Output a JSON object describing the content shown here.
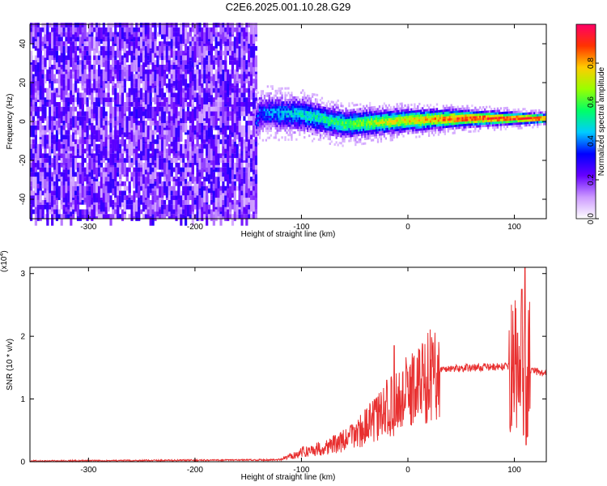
{
  "title": "C2E6.2025.001.10.28.G29",
  "chart_data": [
    {
      "type": "heatmap",
      "xlabel": "Height of straight line (km)",
      "ylabel": "Frequency (Hz)",
      "xlim": [
        -355,
        130
      ],
      "ylim": [
        -50,
        50
      ],
      "xticks": [
        -300,
        -200,
        -100,
        0,
        100
      ],
      "yticks": [
        -40,
        -20,
        0,
        20,
        40
      ],
      "colorbar": {
        "label": "Normalized spectral amplitude",
        "range": [
          0,
          1
        ],
        "ticks": [
          0.0,
          0.2,
          0.4,
          0.6,
          0.8
        ],
        "colors": [
          "#ffffff",
          "#cc99ff",
          "#6600ff",
          "#0000ff",
          "#00ccff",
          "#00ff66",
          "#99ff00",
          "#ffcc00",
          "#ff3300",
          "#ff0066"
        ]
      },
      "noise_region_x": [
        -355,
        -143
      ],
      "signal_center_hz": [
        {
          "x": -140,
          "y": 4
        },
        {
          "x": -100,
          "y": 3
        },
        {
          "x": -60,
          "y": -2
        },
        {
          "x": -30,
          "y": -1
        },
        {
          "x": 0,
          "y": 0
        },
        {
          "x": 50,
          "y": 1
        },
        {
          "x": 100,
          "y": 1
        },
        {
          "x": 130,
          "y": 1
        }
      ]
    },
    {
      "type": "line",
      "xlabel": "Height of straight line (km)",
      "ylabel": "SNR (10 * v/v)",
      "y_multiplier": "(x10",
      "y_multiplier_exp": "4",
      "xlim": [
        -355,
        130
      ],
      "ylim": [
        0,
        3.1
      ],
      "xticks": [
        -300,
        -200,
        -100,
        0,
        100
      ],
      "yticks": [
        0,
        1,
        2,
        3
      ],
      "line_color": "#e83030",
      "trend": [
        {
          "x": -355,
          "y": 0.01
        },
        {
          "x": -120,
          "y": 0.03
        },
        {
          "x": -100,
          "y": 0.15
        },
        {
          "x": -80,
          "y": 0.22
        },
        {
          "x": -60,
          "y": 0.33
        },
        {
          "x": -40,
          "y": 0.55
        },
        {
          "x": -25,
          "y": 0.75
        },
        {
          "x": -10,
          "y": 0.95
        },
        {
          "x": 5,
          "y": 1.18
        },
        {
          "x": 20,
          "y": 1.38
        },
        {
          "x": 35,
          "y": 1.48
        },
        {
          "x": 60,
          "y": 1.5
        },
        {
          "x": 100,
          "y": 1.52
        },
        {
          "x": 130,
          "y": 1.4
        }
      ],
      "spikes": [
        {
          "x": -13,
          "y": 1.85
        },
        {
          "x": -20,
          "y": 1.3
        },
        {
          "x": 103,
          "y": 2.05
        },
        {
          "x": 107,
          "y": 2.75
        },
        {
          "x": 110,
          "y": 3.1
        },
        {
          "x": 111,
          "y": 0.27
        }
      ]
    }
  ]
}
